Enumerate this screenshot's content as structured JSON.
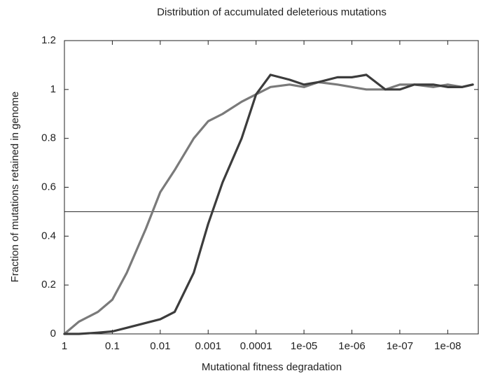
{
  "chart_data": {
    "type": "line",
    "title": "Distribution of accumulated deleterious mutations",
    "xlabel": "Mutational fitness degradation",
    "ylabel": "Fraction of mutations retained in genome",
    "xscale": "log",
    "x": [
      1,
      0.5,
      0.2,
      0.1,
      0.05,
      0.02,
      0.01,
      0.005,
      0.002,
      0.001,
      0.0005,
      0.0002,
      0.0001,
      5e-05,
      2e-05,
      1e-05,
      5e-06,
      2e-06,
      1e-06,
      5e-07,
      2e-07,
      1e-07,
      5e-08,
      2e-08,
      1e-08,
      5e-09,
      3e-09
    ],
    "series": [
      {
        "color": "#7a7a7a",
        "values": [
          0,
          0.05,
          0.09,
          0.14,
          0.25,
          0.43,
          0.58,
          0.67,
          0.8,
          0.87,
          0.9,
          0.95,
          0.98,
          1.01,
          1.02,
          1.01,
          1.03,
          1.02,
          1.01,
          1.0,
          1.0,
          1.02,
          1.02,
          1.01,
          1.02,
          1.01,
          1.02
        ]
      },
      {
        "color": "#3c3c3c",
        "values": [
          0,
          0,
          0.005,
          0.01,
          0.025,
          0.045,
          0.06,
          0.09,
          0.25,
          0.45,
          0.62,
          0.8,
          0.98,
          1.06,
          1.04,
          1.02,
          1.03,
          1.05,
          1.05,
          1.06,
          1.0,
          1.0,
          1.02,
          1.02,
          1.01,
          1.01,
          1.02
        ]
      }
    ],
    "hline": 0.5,
    "xlim": [
      1,
      2.3e-09
    ],
    "xticks": [
      1,
      0.1,
      0.01,
      0.001,
      0.0001,
      {
        "value": 1e-05,
        "label": "1e-05"
      },
      {
        "value": 1e-06,
        "label": "1e-06"
      },
      {
        "value": 1e-07,
        "label": "1e-07"
      },
      {
        "value": 1e-08,
        "label": "1e-08"
      }
    ],
    "ylim": [
      0,
      1.2
    ],
    "yticks": [
      0,
      0.2,
      0.4,
      0.6,
      0.8,
      1,
      1.2
    ]
  }
}
